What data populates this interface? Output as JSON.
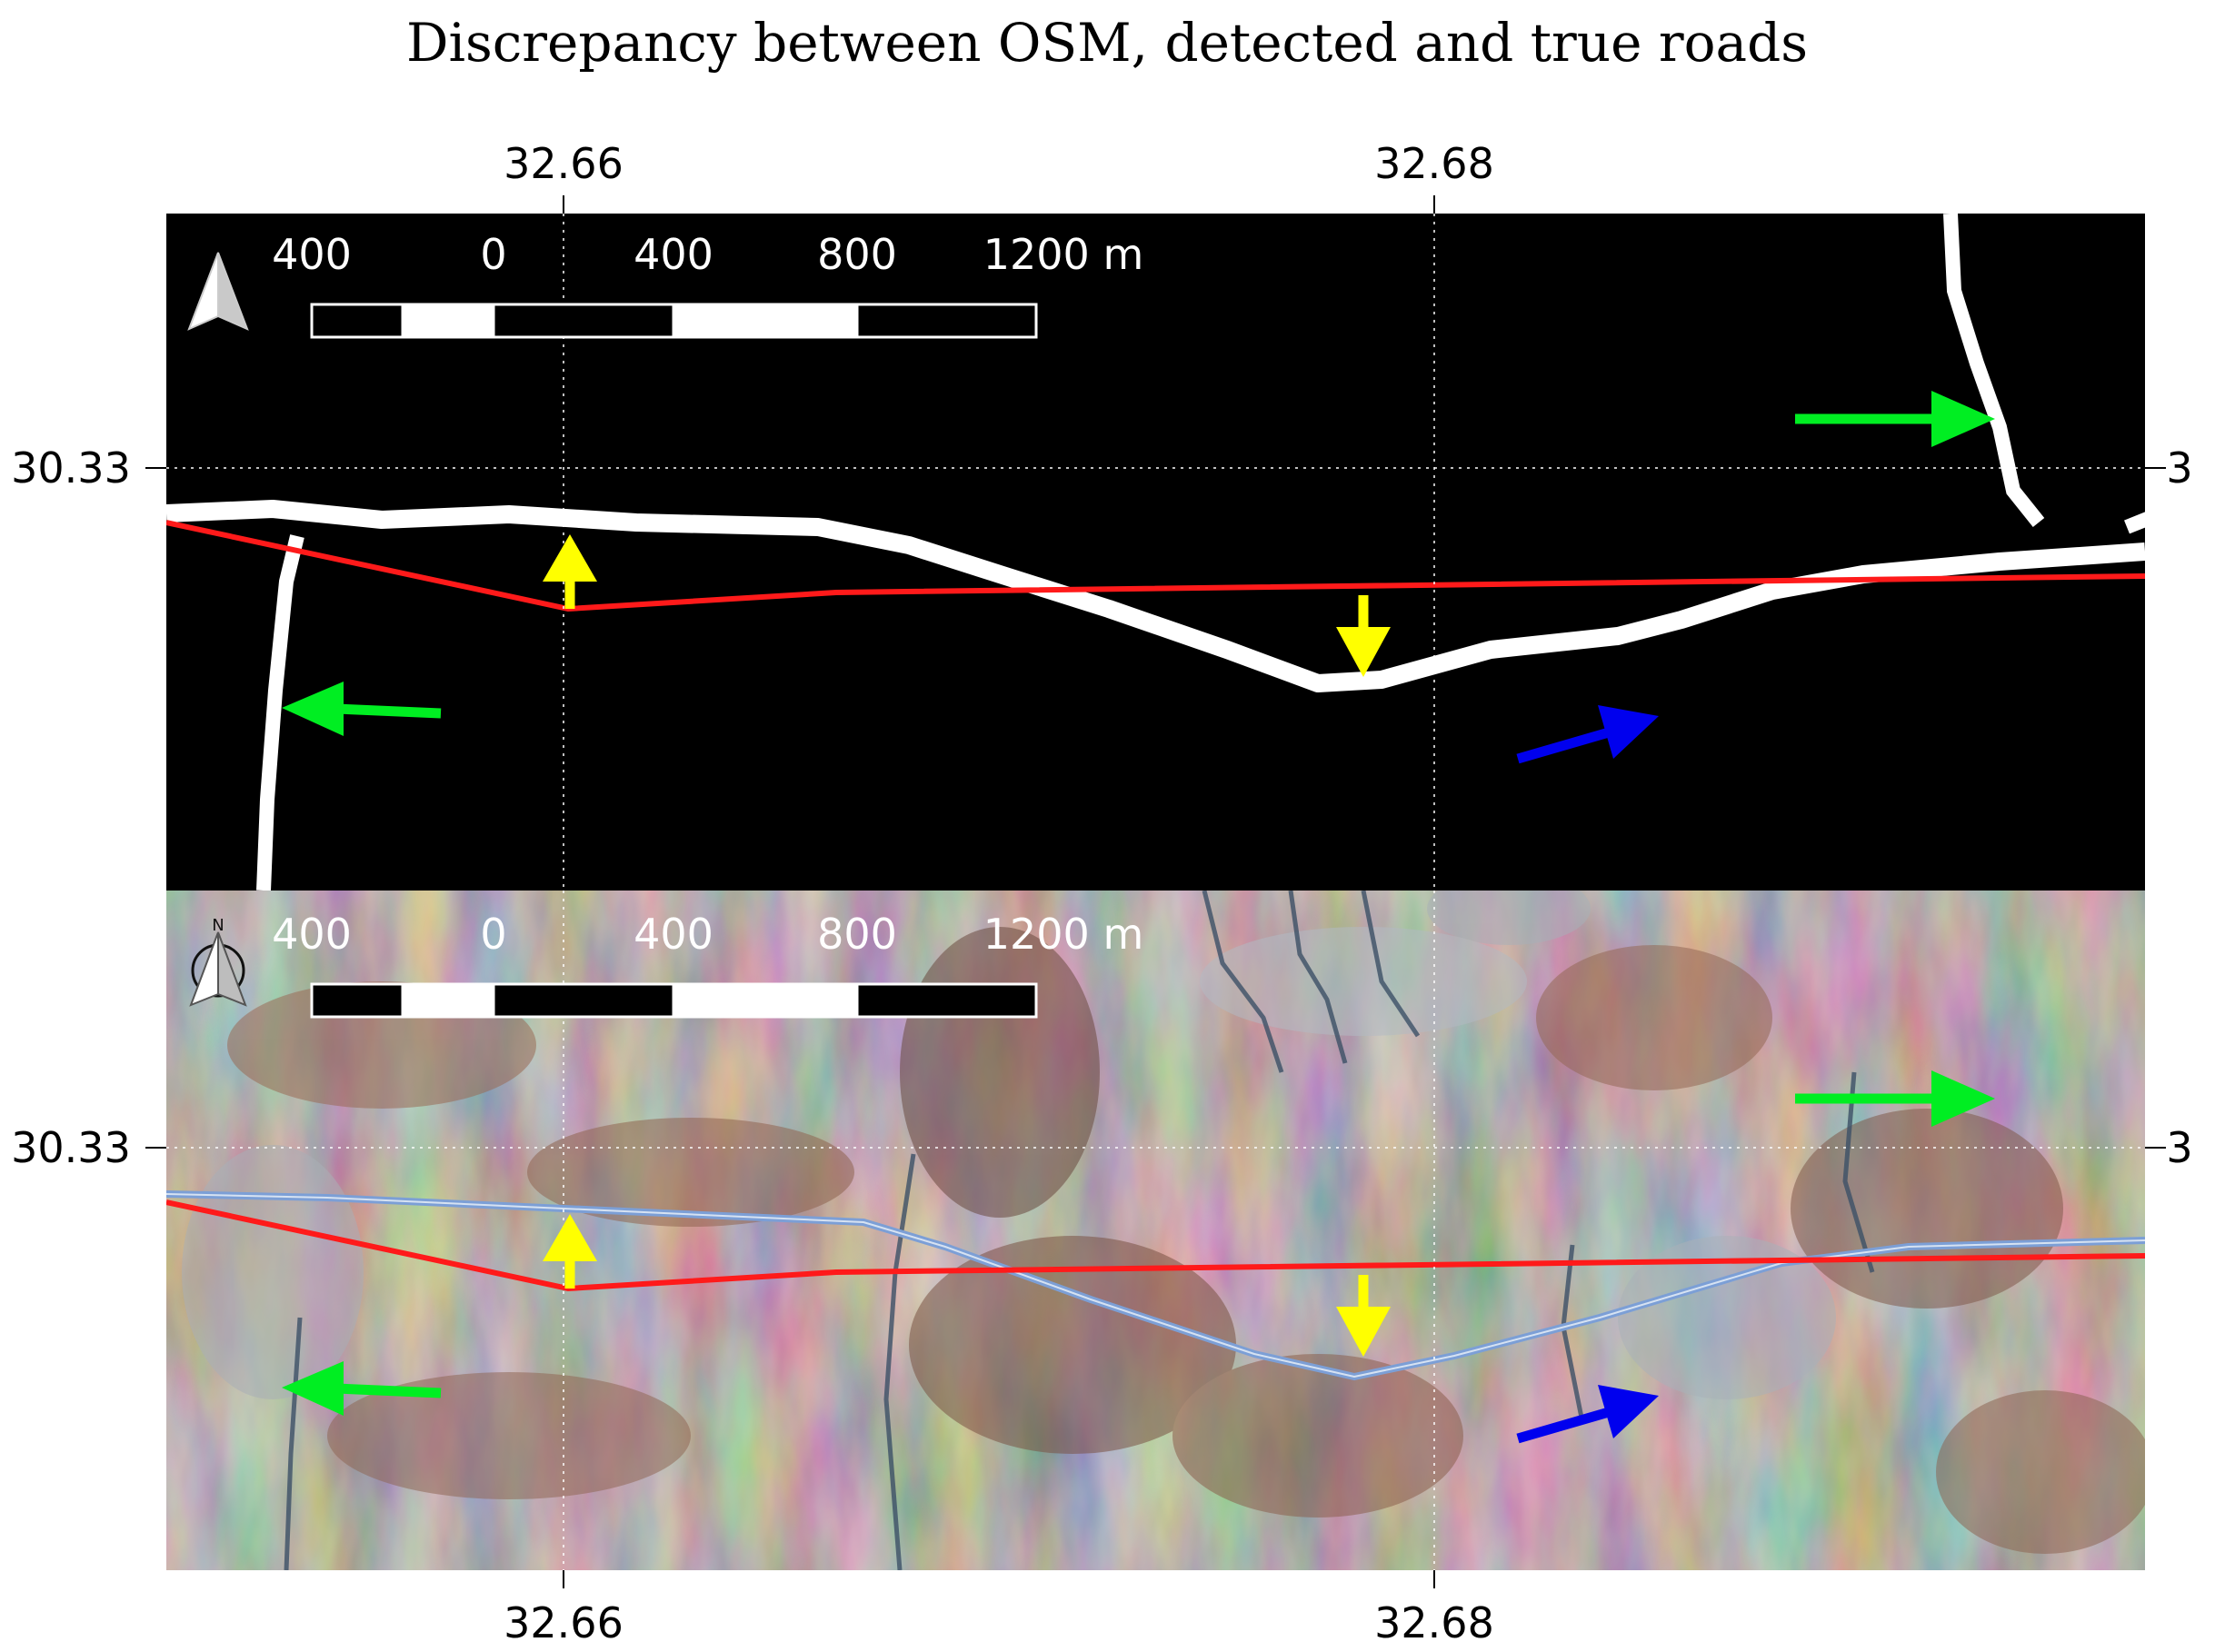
{
  "title": "Discrepancy between OSM, detected and true roads",
  "top_longitude_labels": [
    "32.66",
    "32.68"
  ],
  "bottom_longitude_labels": [
    "32.66",
    "32.68"
  ],
  "panels": [
    {
      "kind": "detected-road-mask",
      "latitude_label_left": "30.33",
      "latitude_label_right": "3",
      "north_arrow": "north-arrow-icon",
      "scale_bar_labels": [
        "400",
        "0",
        "400",
        "800",
        "1200 m"
      ]
    },
    {
      "kind": "satellite-image",
      "latitude_label_left": "30.33",
      "latitude_label_right": "3",
      "north_arrow": "north-arrow-icon",
      "north_arrow_letter": "N",
      "scale_bar_labels": [
        "400",
        "0",
        "400",
        "800",
        "1200 m"
      ]
    }
  ],
  "legend_colors": {
    "osm_road": "#ff1a1a",
    "detected_road": "#ffffff",
    "true_road": "#7c9fd6",
    "arrow_green": "#00ee22",
    "arrow_yellow": "#ffff00",
    "arrow_blue": "#0000ee"
  }
}
